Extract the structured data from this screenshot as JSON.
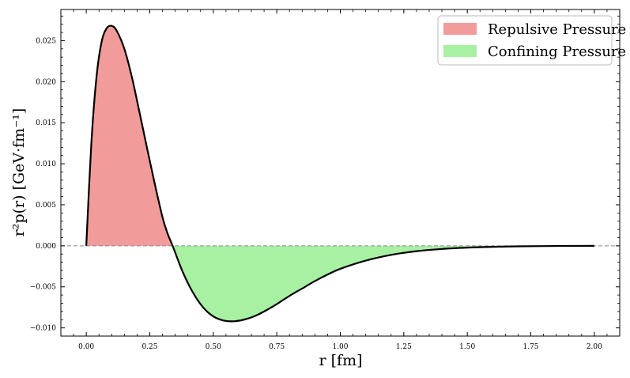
{
  "chart_data": {
    "type": "area",
    "xlabel": "r [fm]",
    "ylabel": "r²p(r) [GeV·fm⁻¹]",
    "xlim": [
      -0.1,
      2.1
    ],
    "ylim": [
      -0.011,
      0.0288
    ],
    "x_ticks": [
      "0.00",
      "0.25",
      "0.50",
      "0.75",
      "1.00",
      "1.25",
      "1.50",
      "1.75",
      "2.00"
    ],
    "y_ticks": [
      "−0.010",
      "−0.005",
      "0.000",
      "0.005",
      "0.010",
      "0.015",
      "0.020",
      "0.025"
    ],
    "grid": false,
    "legend_position": "top-right",
    "zero_line": true,
    "zero_crossing": 0.34,
    "series": [
      {
        "name": "Repulsive Pressure",
        "color": "#f29b9b",
        "x": [
          0.0,
          0.02,
          0.04,
          0.06,
          0.08,
          0.1,
          0.12,
          0.15,
          0.18,
          0.21,
          0.24,
          0.27,
          0.3,
          0.32,
          0.34
        ],
        "y": [
          0.0,
          0.0125,
          0.0205,
          0.0248,
          0.0265,
          0.0268,
          0.0262,
          0.024,
          0.0205,
          0.0162,
          0.0118,
          0.0075,
          0.0035,
          0.0015,
          0.0
        ]
      },
      {
        "name": "Confining Pressure",
        "color": "#a8f0a2",
        "x": [
          0.34,
          0.38,
          0.42,
          0.46,
          0.5,
          0.54,
          0.58,
          0.62,
          0.66,
          0.7,
          0.75,
          0.8,
          0.85,
          0.9,
          0.95,
          1.0,
          1.1,
          1.2,
          1.3,
          1.4,
          1.5,
          1.6,
          1.7,
          1.8,
          1.9,
          2.0
        ],
        "y": [
          0.0,
          -0.0032,
          -0.0057,
          -0.0075,
          -0.0086,
          -0.0091,
          -0.0092,
          -0.009,
          -0.0086,
          -0.008,
          -0.0071,
          -0.0061,
          -0.0052,
          -0.0043,
          -0.0035,
          -0.0028,
          -0.0018,
          -0.0011,
          -0.00065,
          -0.00038,
          -0.00022,
          -0.00012,
          -6e-05,
          -3e-05,
          -1e-05,
          0.0
        ]
      }
    ],
    "curve_color": "#000000"
  }
}
